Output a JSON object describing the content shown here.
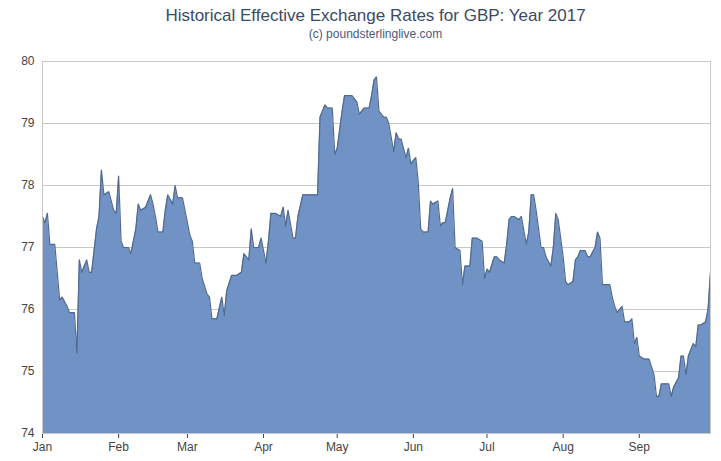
{
  "chart_data": {
    "type": "area",
    "title": "Historical Effective Exchange Rates for GBP: Year 2017",
    "subtitle": "(c) poundsterlinglive.com",
    "color": "#7092c4",
    "grid": true,
    "xlim": [
      1,
      273
    ],
    "xticks": [
      {
        "value": 1,
        "label": "Jan"
      },
      {
        "value": 32,
        "label": "Feb"
      },
      {
        "value": 60,
        "label": "Mar"
      },
      {
        "value": 91,
        "label": "Apr"
      },
      {
        "value": 121,
        "label": "May"
      },
      {
        "value": 152,
        "label": "Jun"
      },
      {
        "value": 182,
        "label": "Jul"
      },
      {
        "value": 213,
        "label": "Aug"
      },
      {
        "value": 244,
        "label": "Sep"
      }
    ],
    "ylim": [
      74,
      80
    ],
    "yticks": [
      74,
      75,
      76,
      77,
      78,
      79,
      80
    ],
    "x": [
      1,
      2,
      3,
      4,
      6,
      8,
      9,
      11,
      12,
      14,
      15,
      16,
      17,
      19,
      20,
      21,
      23,
      24,
      25,
      26,
      28,
      30,
      31,
      32,
      33,
      34,
      36,
      37,
      39,
      40,
      41,
      43,
      45,
      46,
      47,
      48,
      50,
      51,
      52,
      54,
      55,
      56,
      58,
      59,
      61,
      62,
      63,
      65,
      66,
      68,
      69,
      70,
      72,
      74,
      75,
      76,
      78,
      80,
      82,
      83,
      85,
      86,
      87,
      89,
      90,
      92,
      93,
      94,
      96,
      98,
      99,
      100,
      101,
      103,
      104,
      105,
      107,
      109,
      111,
      113,
      114,
      116,
      117,
      119,
      120,
      121,
      123,
      124,
      126,
      127,
      129,
      130,
      131,
      132,
      134,
      135,
      136,
      137,
      138,
      140,
      141,
      142,
      144,
      145,
      146,
      147,
      149,
      150,
      151,
      153,
      154,
      155,
      156,
      158,
      159,
      160,
      162,
      163,
      164,
      165,
      167,
      168,
      169,
      171,
      172,
      173,
      175,
      176,
      177,
      178,
      180,
      181,
      182,
      183,
      185,
      186,
      187,
      189,
      190,
      191,
      192,
      193,
      195,
      196,
      198,
      199,
      200,
      201,
      202,
      204,
      205,
      206,
      208,
      209,
      210,
      211,
      213,
      214,
      215,
      217,
      218,
      219,
      220,
      222,
      223,
      224,
      226,
      227,
      228,
      229,
      231,
      232,
      233,
      234,
      235,
      237,
      238,
      240,
      241,
      242,
      243,
      244,
      246,
      247,
      248,
      250,
      251,
      252,
      253,
      255,
      256,
      257,
      258,
      260,
      261,
      262,
      263,
      264,
      266,
      267,
      268,
      269,
      271,
      272,
      273
    ],
    "values": [
      77.5,
      77.4,
      77.55,
      77.05,
      77.05,
      76.15,
      76.2,
      76.05,
      75.95,
      75.95,
      75.3,
      76.8,
      76.6,
      76.8,
      76.6,
      76.6,
      77.3,
      77.5,
      78.25,
      77.85,
      77.9,
      77.6,
      77.55,
      78.15,
      77.1,
      77.0,
      77.0,
      76.9,
      77.3,
      77.7,
      77.6,
      77.65,
      77.85,
      77.7,
      77.5,
      77.25,
      77.25,
      77.6,
      77.85,
      77.7,
      78.0,
      77.8,
      77.8,
      77.6,
      77.2,
      77.1,
      76.75,
      76.75,
      76.5,
      76.25,
      76.2,
      75.85,
      75.85,
      76.2,
      75.9,
      76.3,
      76.55,
      76.55,
      76.6,
      76.9,
      76.8,
      77.3,
      77.0,
      77.0,
      77.15,
      76.75,
      77.1,
      77.55,
      77.55,
      77.5,
      77.65,
      77.35,
      77.6,
      77.15,
      77.15,
      77.5,
      77.85,
      77.85,
      77.85,
      77.85,
      79.1,
      79.3,
      79.25,
      79.25,
      78.5,
      78.6,
      79.2,
      79.45,
      79.45,
      79.45,
      79.35,
      79.15,
      79.2,
      79.25,
      79.25,
      79.45,
      79.7,
      79.75,
      79.2,
      79.1,
      79.1,
      79.0,
      78.55,
      78.85,
      78.75,
      78.75,
      78.45,
      78.6,
      78.35,
      78.45,
      78.05,
      77.3,
      77.25,
      77.25,
      77.75,
      77.7,
      77.75,
      77.35,
      77.4,
      77.4,
      77.8,
      77.95,
      77.0,
      76.95,
      76.4,
      76.7,
      76.7,
      77.15,
      77.15,
      77.15,
      77.1,
      76.5,
      76.65,
      76.6,
      76.85,
      76.85,
      76.8,
      76.75,
      77.05,
      77.45,
      77.5,
      77.5,
      77.45,
      77.5,
      77.05,
      77.25,
      77.85,
      77.85,
      77.6,
      77.0,
      77.0,
      76.85,
      76.7,
      77.0,
      77.55,
      77.45,
      76.85,
      76.45,
      76.4,
      76.45,
      76.8,
      76.85,
      76.95,
      76.95,
      76.85,
      76.85,
      77.0,
      77.25,
      77.15,
      76.4,
      76.4,
      76.4,
      76.2,
      76.05,
      75.95,
      76.05,
      75.8,
      75.8,
      75.85,
      75.45,
      75.55,
      75.25,
      75.2,
      75.2,
      75.2,
      74.95,
      74.6,
      74.6,
      74.8,
      74.8,
      74.8,
      74.6,
      74.75,
      74.9,
      75.25,
      75.25,
      74.95,
      75.25,
      75.45,
      75.4,
      75.75,
      75.75,
      75.8,
      76.0,
      76.6
    ]
  }
}
